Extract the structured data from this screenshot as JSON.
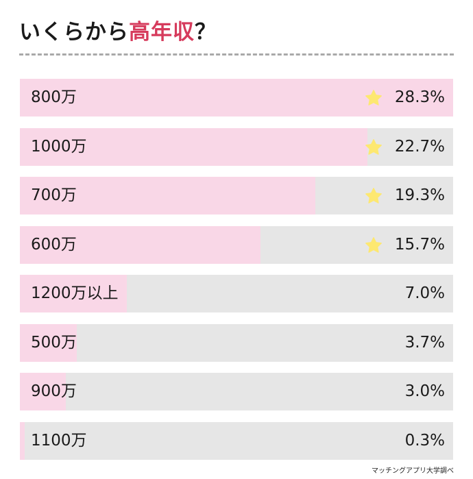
{
  "title": {
    "lead": "いくらから",
    "accent": "高年収",
    "tail": "？"
  },
  "source": "マッチングアプリ大学調べ",
  "colors": {
    "accent": "#d63b5c",
    "fill": "#f9d7e7",
    "track": "#e6e6e6",
    "star": "#fde871"
  },
  "chart_data": {
    "type": "bar",
    "orientation": "horizontal",
    "categories": [
      "800万",
      "1000万",
      "700万",
      "600万",
      "1200万以上",
      "500万",
      "900万",
      "1100万"
    ],
    "values": [
      28.3,
      22.7,
      19.3,
      15.7,
      7.0,
      3.7,
      3.0,
      0.3
    ],
    "value_labels": [
      "28.3%",
      "22.7%",
      "19.3%",
      "15.7%",
      "7.0%",
      "3.7%",
      "3.0%",
      "0.3%"
    ],
    "starred": [
      true,
      true,
      true,
      true,
      false,
      false,
      false,
      false
    ],
    "max_value": 28.3,
    "unit": "%"
  }
}
